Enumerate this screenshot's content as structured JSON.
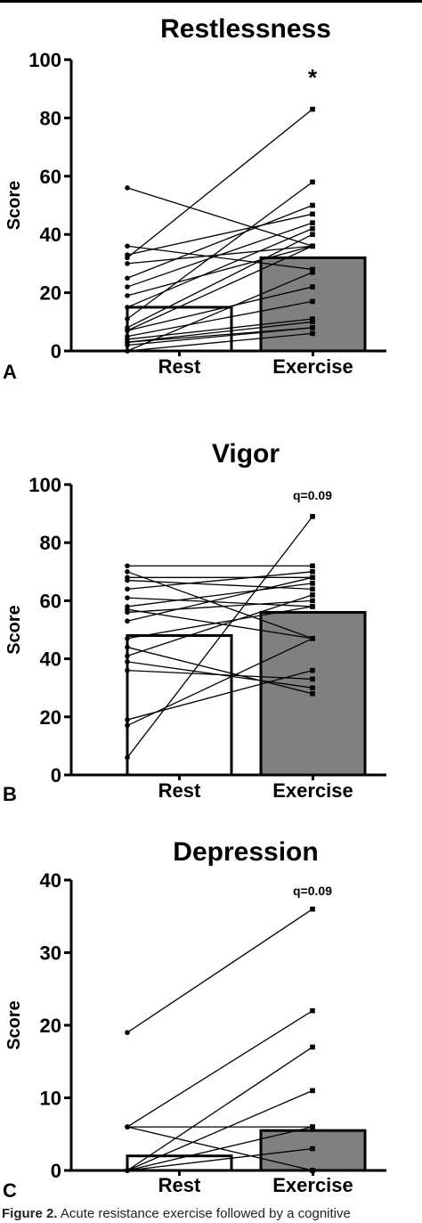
{
  "chart_data": [
    {
      "type": "bar",
      "title": "Restlessness",
      "panel_label": "A",
      "ylabel": "Score",
      "ylim": [
        0,
        100
      ],
      "yticks": [
        0,
        20,
        40,
        60,
        80,
        100
      ],
      "categories": [
        "Rest",
        "Exercise"
      ],
      "values": [
        15,
        32
      ],
      "bar_colors": [
        "#ffffff",
        "#808080"
      ],
      "annotation": "*",
      "paired_points": [
        [
          56,
          36
        ],
        [
          36,
          28
        ],
        [
          33,
          47
        ],
        [
          32,
          83
        ],
        [
          30,
          36
        ],
        [
          25,
          50
        ],
        [
          22,
          44
        ],
        [
          19,
          36
        ],
        [
          15,
          42
        ],
        [
          11,
          58
        ],
        [
          8,
          40
        ],
        [
          7,
          36
        ],
        [
          7,
          22
        ],
        [
          5,
          17
        ],
        [
          4,
          11
        ],
        [
          3,
          10
        ],
        [
          2,
          8
        ],
        [
          0,
          6
        ],
        [
          0,
          27
        ],
        [
          3,
          8
        ]
      ],
      "grid": false
    },
    {
      "type": "bar",
      "title": "Vigor",
      "panel_label": "B",
      "ylabel": "Score",
      "ylim": [
        0,
        100
      ],
      "yticks": [
        0,
        20,
        40,
        60,
        80,
        100
      ],
      "categories": [
        "Rest",
        "Exercise"
      ],
      "values": [
        48,
        56
      ],
      "bar_colors": [
        "#ffffff",
        "#808080"
      ],
      "annotation": "q=0.09",
      "paired_points": [
        [
          72,
          72
        ],
        [
          70,
          47
        ],
        [
          68,
          68
        ],
        [
          67,
          64
        ],
        [
          64,
          70
        ],
        [
          61,
          58
        ],
        [
          58,
          66
        ],
        [
          57,
          47
        ],
        [
          56,
          60
        ],
        [
          53,
          68
        ],
        [
          47,
          58
        ],
        [
          44,
          28
        ],
        [
          41,
          62
        ],
        [
          39,
          30
        ],
        [
          36,
          33
        ],
        [
          19,
          36
        ],
        [
          17,
          47
        ],
        [
          6,
          89
        ]
      ],
      "grid": false
    },
    {
      "type": "bar",
      "title": "Depression",
      "panel_label": "C",
      "ylabel": "Score",
      "ylim": [
        0,
        40
      ],
      "yticks": [
        0,
        10,
        20,
        30,
        40
      ],
      "categories": [
        "Rest",
        "Exercise"
      ],
      "values": [
        2,
        5.5
      ],
      "bar_colors": [
        "#ffffff",
        "#808080"
      ],
      "annotation": "q=0.09",
      "paired_points": [
        [
          19,
          36
        ],
        [
          6,
          22
        ],
        [
          6,
          6
        ],
        [
          6,
          0
        ],
        [
          0,
          17
        ],
        [
          0,
          11
        ],
        [
          0,
          6
        ],
        [
          0,
          3
        ],
        [
          0,
          0
        ]
      ],
      "grid": false
    }
  ],
  "caption": {
    "label": "Figure 2.",
    "text": " Acute resistance exercise followed by a cognitive"
  }
}
